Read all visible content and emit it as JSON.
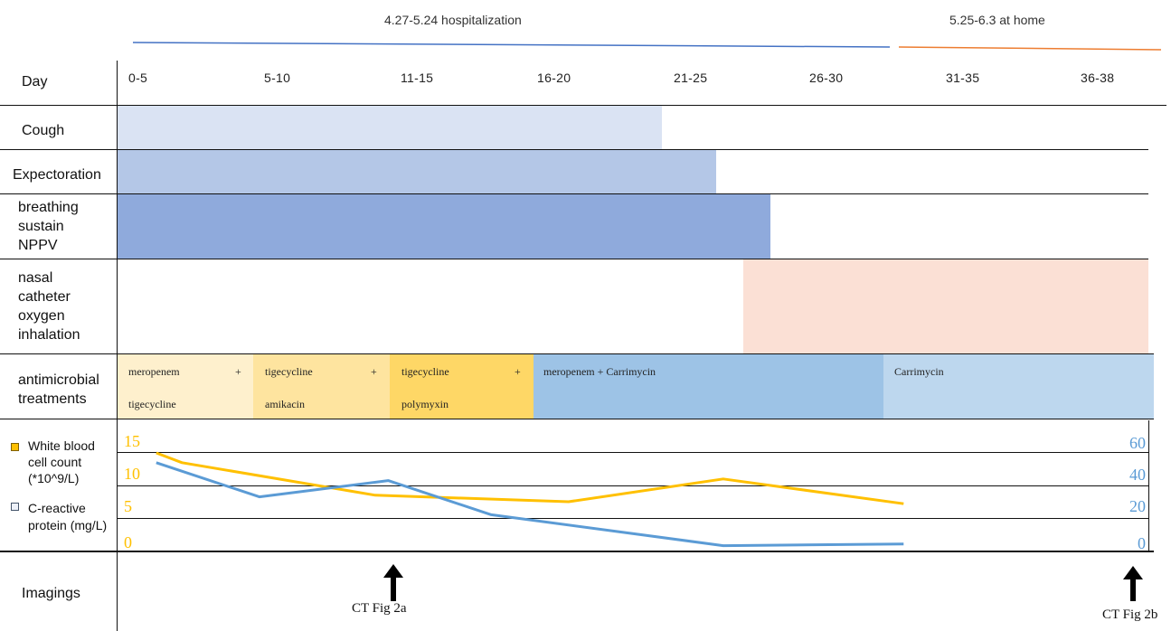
{
  "periods": {
    "hospital_label": "4.27-5.24 hospitalization",
    "home_label": "5.25-6.3 at home",
    "hospital_color": "#4472C4",
    "home_color": "#ED7D31"
  },
  "rows": {
    "day": "Day",
    "cough": "Cough",
    "expectoration": "Expectoration",
    "breathing": [
      "breathing",
      "sustain",
      "NPPV"
    ],
    "nasal": [
      "nasal",
      "catheter",
      "oxygen",
      "inhalation"
    ],
    "antimicrobial": [
      "antimicrobial",
      "treatments"
    ],
    "imagings": "Imagings"
  },
  "days": [
    "0-5",
    "5-10",
    "11-15",
    "16-20",
    "21-25",
    "26-30",
    "31-35",
    "36-38"
  ],
  "treatments": [
    {
      "line1": "meropenem",
      "plus": "+",
      "line2": "tigecycline",
      "color": "#FEF0CD"
    },
    {
      "line1": "tigecycline",
      "plus": "+",
      "line2": "amikacin",
      "color": "#FEE49F"
    },
    {
      "line1": "tigecycline",
      "plus": "+",
      "line2": "polymyxin",
      "color": "#FED766"
    },
    {
      "line1": "meropenem + Carrimycin",
      "plus": "",
      "line2": "",
      "color": "#9DC3E6"
    },
    {
      "line1": "Carrimycin",
      "plus": "",
      "line2": "",
      "color": "#BDD7EE"
    }
  ],
  "symptom_colors": {
    "cough": "#DAE3F3",
    "expectoration": "#B4C7E7",
    "breathing": "#8FAADC",
    "nasal": "#FBE0D5"
  },
  "legend": {
    "wbc": [
      "White blood",
      "cell count",
      "(*10^9/L)"
    ],
    "crp": [
      "C-reactive",
      "protein (mg/L)"
    ],
    "wbc_color": "#FFC000",
    "crp_color": "#5B9BD5"
  },
  "chart_data": {
    "type": "line",
    "x": [
      0,
      3,
      7.5,
      12.5,
      17.5,
      22.5,
      27.5,
      33
    ],
    "x_unit": "day",
    "series": [
      {
        "name": "White blood cell count (*10^9/L)",
        "axis": "left",
        "x": [
          0,
          1,
          8.5,
          16,
          22,
          29
        ],
        "values": [
          15,
          13.5,
          8.5,
          7.5,
          11,
          7.2
        ]
      },
      {
        "name": "C-reactive protein (mg/L)",
        "axis": "right",
        "x": [
          0,
          4,
          9,
          13,
          22,
          29
        ],
        "values": [
          54,
          33,
          43,
          22,
          3,
          4
        ]
      }
    ],
    "y_left": {
      "ticks": [
        "0",
        "5",
        "10",
        "15"
      ],
      "ylim": [
        0,
        20
      ],
      "color": "#FFC000"
    },
    "y_right": {
      "ticks": [
        "0",
        "20",
        "40",
        "60"
      ],
      "ylim": [
        0,
        80
      ],
      "color": "#5B9BD5"
    },
    "xlim": [
      -1.5,
      38.5
    ]
  },
  "imaging": [
    {
      "label": "CT Fig 2a",
      "day": 8.5
    },
    {
      "label": "CT Fig 2b",
      "day": 38
    }
  ]
}
